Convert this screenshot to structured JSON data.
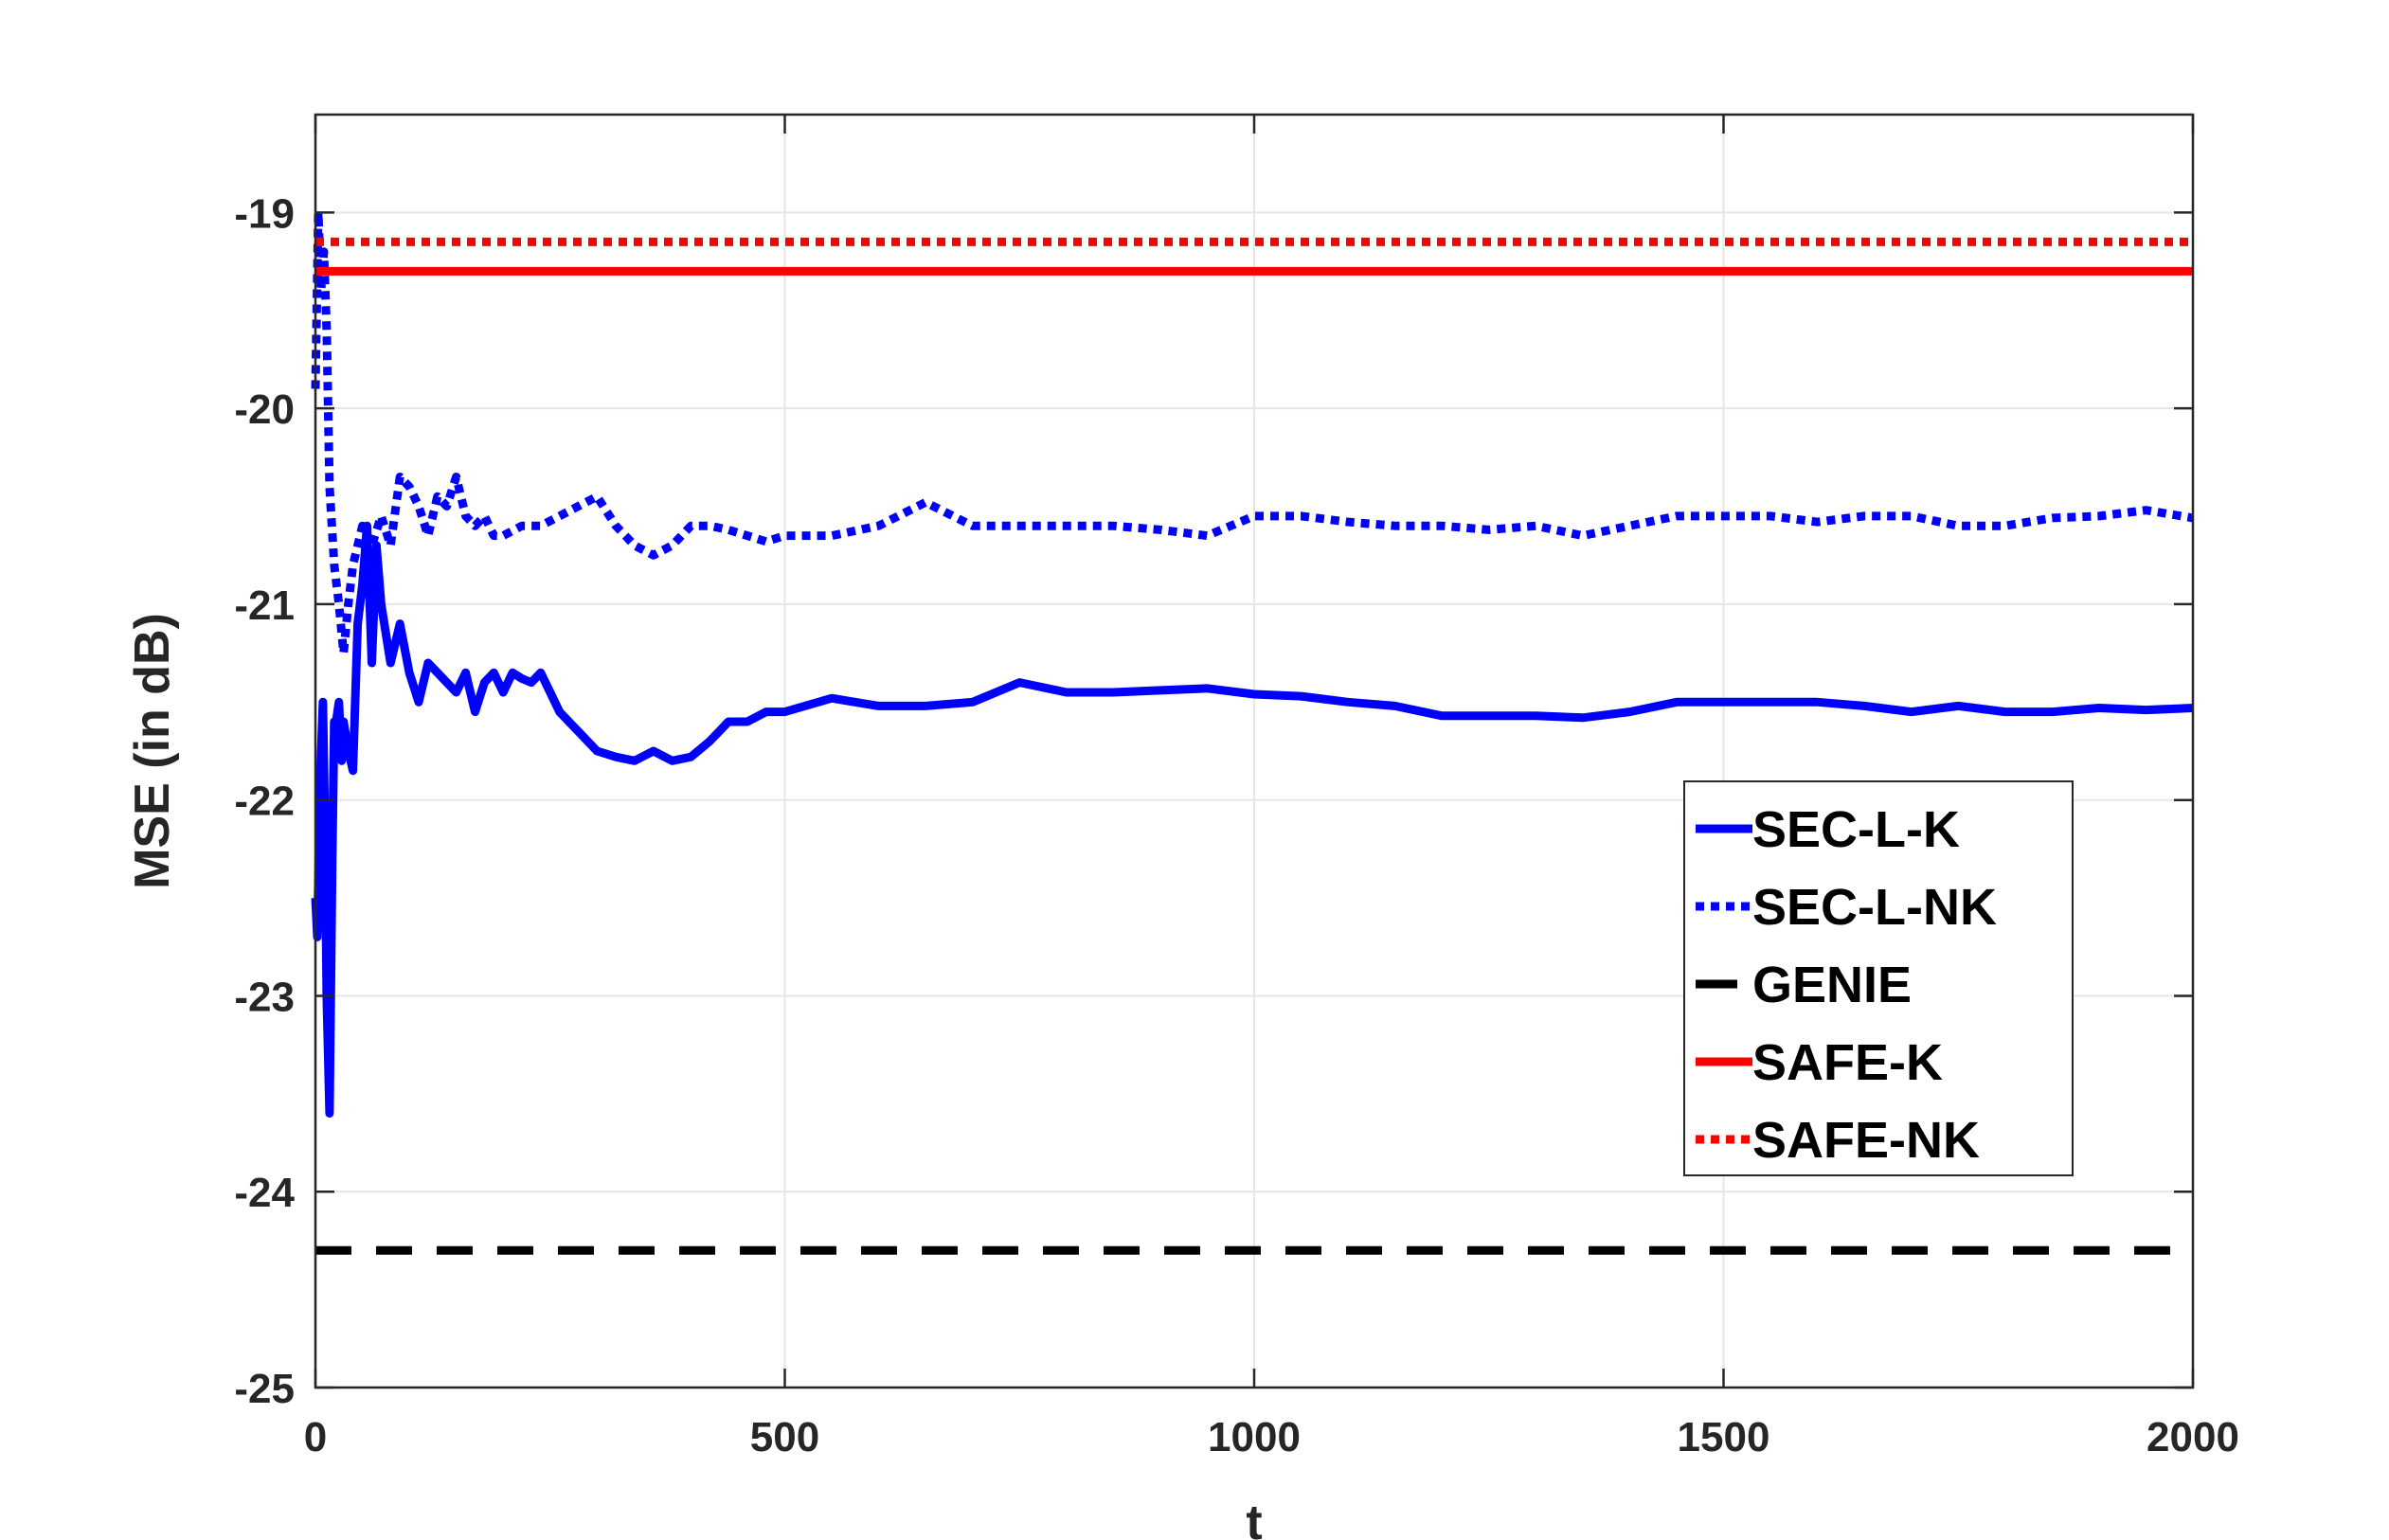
{
  "chart_data": {
    "type": "line",
    "title": "",
    "xlabel": "t",
    "ylabel": "MSE (in dB)",
    "xlim": [
      0,
      2000
    ],
    "ylim": [
      -25,
      -18.5
    ],
    "xticks": [
      0,
      500,
      1000,
      1500,
      2000
    ],
    "xtick_labels": [
      "0",
      "500",
      "1000",
      "1500",
      "2000"
    ],
    "yticks": [
      -25,
      -24,
      -23,
      -22,
      -21,
      -20,
      -19
    ],
    "ytick_labels": [
      "-25",
      "-24",
      "-23",
      "-22",
      "-21",
      "-20",
      "-19"
    ],
    "grid": true,
    "legend_position": "right",
    "series": [
      {
        "name": "SEC-L-K",
        "color": "#0000FF",
        "style": "solid",
        "x": [
          0,
          2,
          5,
          8,
          10,
          12,
          15,
          18,
          20,
          22,
          25,
          28,
          30,
          35,
          40,
          45,
          50,
          55,
          60,
          65,
          70,
          80,
          90,
          100,
          110,
          120,
          130,
          140,
          150,
          160,
          170,
          180,
          190,
          200,
          210,
          220,
          230,
          240,
          250,
          260,
          270,
          280,
          290,
          300,
          320,
          340,
          360,
          380,
          400,
          420,
          440,
          460,
          480,
          500,
          550,
          600,
          650,
          700,
          750,
          800,
          850,
          900,
          950,
          1000,
          1050,
          1100,
          1150,
          1200,
          1250,
          1300,
          1350,
          1400,
          1450,
          1500,
          1550,
          1600,
          1650,
          1700,
          1750,
          1800,
          1850,
          1900,
          1950,
          2000
        ],
        "y": [
          -22.5,
          -22.7,
          -21.9,
          -21.5,
          -22.1,
          -23.0,
          -23.6,
          -22.3,
          -21.6,
          -21.6,
          -21.5,
          -21.8,
          -21.6,
          -21.75,
          -21.85,
          -21.1,
          -20.9,
          -20.6,
          -21.3,
          -20.7,
          -21.0,
          -21.3,
          -21.1,
          -21.35,
          -21.5,
          -21.3,
          -21.35,
          -21.4,
          -21.45,
          -21.35,
          -21.55,
          -21.4,
          -21.35,
          -21.45,
          -21.35,
          -21.38,
          -21.4,
          -21.35,
          -21.45,
          -21.55,
          -21.6,
          -21.65,
          -21.7,
          -21.75,
          -21.78,
          -21.8,
          -21.75,
          -21.8,
          -21.78,
          -21.7,
          -21.6,
          -21.6,
          -21.55,
          -21.55,
          -21.48,
          -21.52,
          -21.52,
          -21.5,
          -21.4,
          -21.45,
          -21.45,
          -21.44,
          -21.43,
          -21.46,
          -21.47,
          -21.5,
          -21.52,
          -21.57,
          -21.57,
          -21.57,
          -21.58,
          -21.55,
          -21.5,
          -21.5,
          -21.5,
          -21.5,
          -21.52,
          -21.55,
          -21.52,
          -21.55,
          -21.55,
          -21.53,
          -21.54,
          -21.53
        ]
      },
      {
        "name": "SEC-L-NK",
        "color": "#0000FF",
        "style": "dotted",
        "x": [
          0,
          3,
          6,
          9,
          12,
          15,
          20,
          25,
          30,
          35,
          40,
          50,
          60,
          70,
          80,
          90,
          100,
          110,
          120,
          130,
          140,
          150,
          160,
          170,
          180,
          190,
          200,
          220,
          240,
          260,
          280,
          300,
          320,
          340,
          360,
          380,
          400,
          420,
          440,
          460,
          480,
          500,
          550,
          600,
          650,
          700,
          750,
          800,
          850,
          900,
          950,
          1000,
          1050,
          1100,
          1150,
          1200,
          1250,
          1300,
          1350,
          1400,
          1450,
          1500,
          1550,
          1600,
          1650,
          1700,
          1750,
          1800,
          1850,
          1900,
          1950,
          2000
        ],
        "y": [
          -19.9,
          -19.0,
          -19.4,
          -19.2,
          -19.6,
          -20.4,
          -20.8,
          -21.0,
          -21.25,
          -21.0,
          -20.8,
          -20.6,
          -20.7,
          -20.55,
          -20.7,
          -20.35,
          -20.4,
          -20.5,
          -20.65,
          -20.45,
          -20.5,
          -20.35,
          -20.55,
          -20.6,
          -20.55,
          -20.65,
          -20.65,
          -20.6,
          -20.6,
          -20.55,
          -20.5,
          -20.45,
          -20.6,
          -20.7,
          -20.75,
          -20.7,
          -20.6,
          -20.6,
          -20.62,
          -20.65,
          -20.68,
          -20.65,
          -20.65,
          -20.6,
          -20.48,
          -20.6,
          -20.6,
          -20.6,
          -20.6,
          -20.62,
          -20.65,
          -20.55,
          -20.55,
          -20.58,
          -20.6,
          -20.6,
          -20.62,
          -20.6,
          -20.65,
          -20.6,
          -20.55,
          -20.55,
          -20.55,
          -20.58,
          -20.55,
          -20.55,
          -20.6,
          -20.6,
          -20.56,
          -20.55,
          -20.52,
          -20.56
        ]
      },
      {
        "name": "GENIE",
        "color": "#000000",
        "style": "dashed",
        "x": [
          0,
          2000
        ],
        "y": [
          -24.3,
          -24.3
        ]
      },
      {
        "name": "SAFE-K",
        "color": "#FF0000",
        "style": "solid",
        "x": [
          0,
          2000
        ],
        "y": [
          -19.3,
          -19.3
        ]
      },
      {
        "name": "SAFE-NK",
        "color": "#FF0000",
        "style": "dotted",
        "x": [
          0,
          2000
        ],
        "y": [
          -19.15,
          -19.15
        ]
      }
    ]
  }
}
